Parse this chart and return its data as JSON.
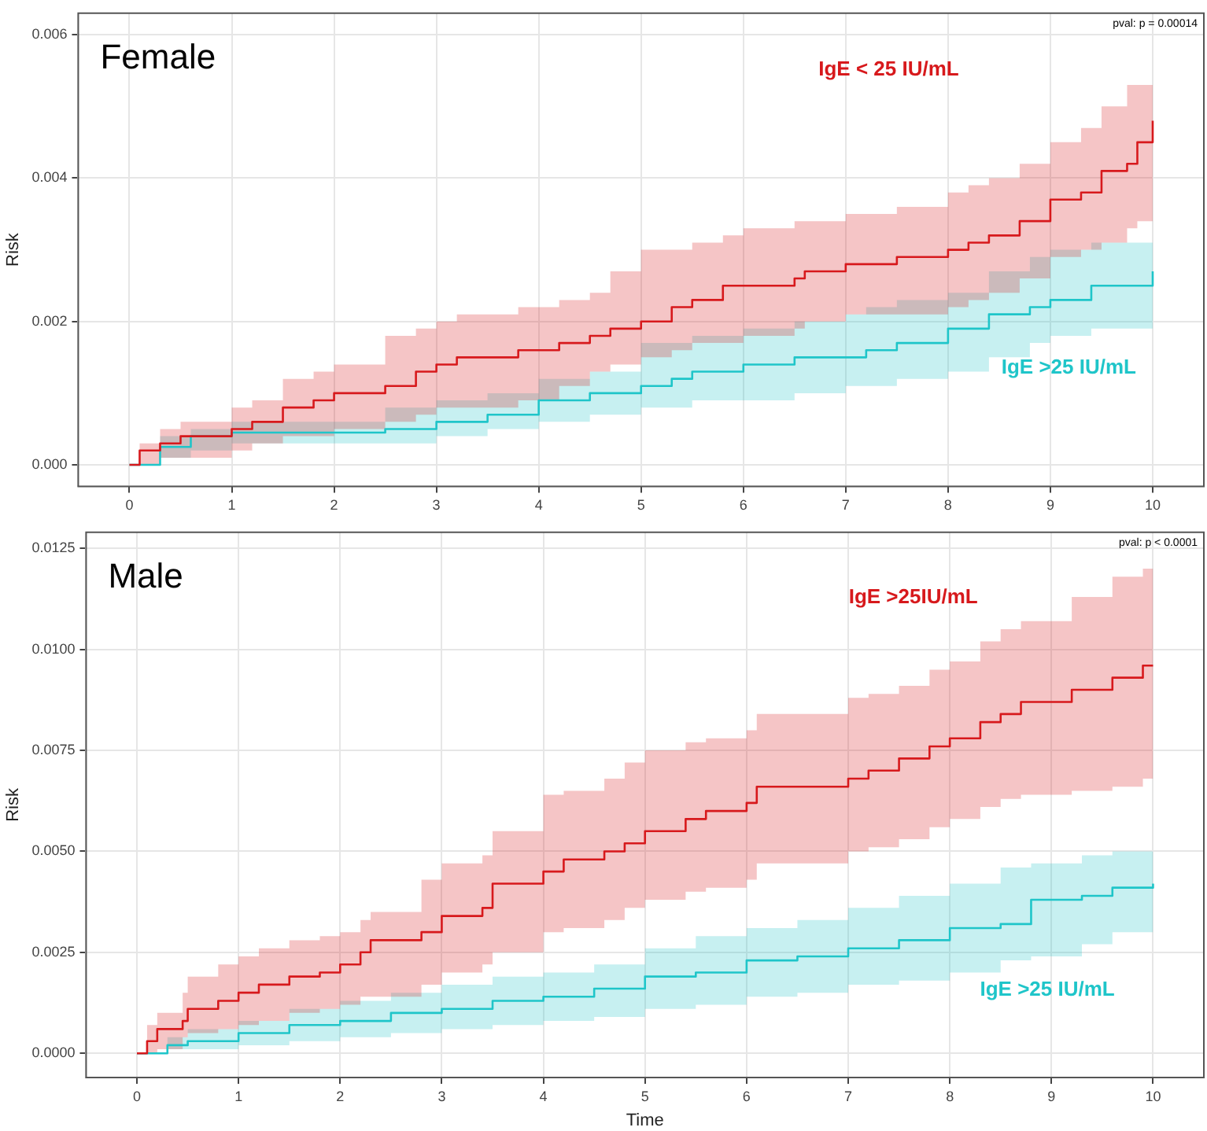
{
  "chart_data": [
    {
      "type": "step",
      "title": "Female",
      "ylabel": "Risk",
      "annotations": [
        "pval: p = 0.00014"
      ],
      "xlim": [
        -0.5,
        10.5
      ],
      "xticks": [
        0,
        1,
        2,
        3,
        4,
        5,
        6,
        7,
        8,
        9,
        10
      ],
      "ylim": [
        -0.0003,
        0.0063
      ],
      "yticks": [
        {
          "value": 0,
          "label": "0.000"
        },
        {
          "value": 0.002,
          "label": "0.002"
        },
        {
          "value": 0.004,
          "label": "0.004"
        },
        {
          "value": 0.006,
          "label": "0.006"
        }
      ],
      "grid": true,
      "legend": false,
      "marker": "none",
      "line_style": "solid",
      "series": [
        {
          "name": "IgE < 25 IU/mL",
          "color": "#d7191c",
          "x": [
            0,
            0.1,
            0.3,
            0.5,
            1,
            1.2,
            1.5,
            1.8,
            2,
            2.5,
            2.8,
            3,
            3.2,
            3.8,
            4.2,
            4.5,
            4.7,
            5,
            5.3,
            5.5,
            5.8,
            6,
            6.5,
            6.6,
            7,
            7.5,
            8,
            8.2,
            8.4,
            8.7,
            9,
            9.3,
            9.5,
            9.75,
            9.85,
            10
          ],
          "values": [
            0,
            0.0002,
            0.0003,
            0.0004,
            0.0005,
            0.0006,
            0.0008,
            0.0009,
            0.001,
            0.0011,
            0.0013,
            0.0014,
            0.0015,
            0.0016,
            0.0017,
            0.0018,
            0.0019,
            0.002,
            0.0022,
            0.0023,
            0.0025,
            0.0025,
            0.0026,
            0.0027,
            0.0028,
            0.0029,
            0.003,
            0.0031,
            0.0032,
            0.0034,
            0.0037,
            0.0038,
            0.0041,
            0.0042,
            0.0045,
            0.0048
          ],
          "upper": [
            0,
            0.0003,
            0.0005,
            0.0006,
            0.0008,
            0.0009,
            0.0012,
            0.0013,
            0.0014,
            0.0018,
            0.0019,
            0.002,
            0.0021,
            0.0022,
            0.0023,
            0.0024,
            0.0027,
            0.003,
            0.003,
            0.0031,
            0.0032,
            0.0033,
            0.0034,
            0.0034,
            0.0035,
            0.0036,
            0.0038,
            0.0039,
            0.004,
            0.0042,
            0.0045,
            0.0047,
            0.005,
            0.0053,
            0.0053,
            0.0058
          ],
          "lower": [
            0,
            0,
            0.0001,
            0.0001,
            0.0002,
            0.0003,
            0.0004,
            0.0004,
            0.0005,
            0.0006,
            0.0007,
            0.0008,
            0.0008,
            0.0009,
            0.0011,
            0.0013,
            0.0014,
            0.0015,
            0.0016,
            0.0017,
            0.0017,
            0.0018,
            0.0019,
            0.002,
            0.0021,
            0.0021,
            0.0022,
            0.0023,
            0.0024,
            0.0026,
            0.0029,
            0.003,
            0.0031,
            0.0033,
            0.0034,
            0.0036
          ]
        },
        {
          "name": "IgE >25 IU/mL",
          "color": "#1fc5c9",
          "x": [
            0,
            0.3,
            0.6,
            1,
            2,
            2.5,
            3,
            3.5,
            4,
            4.5,
            5,
            5.3,
            5.5,
            6,
            6.5,
            7,
            7.2,
            7.5,
            8,
            8.4,
            8.8,
            9,
            9.4,
            10
          ],
          "values": [
            0,
            0.00025,
            0.0004,
            0.00045,
            0.00045,
            0.0005,
            0.0006,
            0.0007,
            0.0009,
            0.001,
            0.0011,
            0.0012,
            0.0013,
            0.0014,
            0.0015,
            0.0015,
            0.0016,
            0.0017,
            0.0019,
            0.0021,
            0.0022,
            0.0023,
            0.0025,
            0.0027
          ],
          "upper": [
            0,
            0.0004,
            0.0005,
            0.0006,
            0.0006,
            0.0008,
            0.0009,
            0.001,
            0.0012,
            0.0013,
            0.0017,
            0.0017,
            0.0018,
            0.0019,
            0.002,
            0.0021,
            0.0022,
            0.0023,
            0.0024,
            0.0027,
            0.0029,
            0.003,
            0.0031,
            0.0033
          ],
          "lower": [
            0,
            0.0001,
            0.0002,
            0.0003,
            0.0003,
            0.0003,
            0.0004,
            0.0005,
            0.0006,
            0.0007,
            0.0008,
            0.0008,
            0.0009,
            0.0009,
            0.001,
            0.0011,
            0.0011,
            0.0012,
            0.0013,
            0.0015,
            0.0017,
            0.0018,
            0.0019,
            0.0021
          ]
        }
      ]
    },
    {
      "type": "step",
      "title": "Male",
      "xlabel": "Time",
      "ylabel": "Risk",
      "annotations": [
        "pval: p < 0.0001"
      ],
      "xlim": [
        -0.5,
        10.5
      ],
      "xticks": [
        0,
        1,
        2,
        3,
        4,
        5,
        6,
        7,
        8,
        9,
        10
      ],
      "ylim": [
        -0.0006,
        0.0129
      ],
      "yticks": [
        {
          "value": 0,
          "label": "0.0000"
        },
        {
          "value": 0.0025,
          "label": "0.0025"
        },
        {
          "value": 0.005,
          "label": "0.0050"
        },
        {
          "value": 0.0075,
          "label": "0.0075"
        },
        {
          "value": 0.01,
          "label": "0.0100"
        },
        {
          "value": 0.0125,
          "label": "0.0125"
        }
      ],
      "grid": true,
      "legend": false,
      "marker": "none",
      "line_style": "solid",
      "series": [
        {
          "name": "IgE >25IU/mL",
          "color": "#d7191c",
          "x": [
            0,
            0.1,
            0.2,
            0.45,
            0.5,
            0.8,
            1,
            1.2,
            1.5,
            1.8,
            2,
            2.2,
            2.3,
            2.8,
            3,
            3.4,
            3.5,
            4,
            4.2,
            4.6,
            4.8,
            5,
            5.4,
            5.6,
            6,
            6.1,
            7,
            7.2,
            7.5,
            7.8,
            8,
            8.3,
            8.5,
            8.7,
            9.2,
            9.6,
            9.9,
            10
          ],
          "values": [
            0,
            0.0003,
            0.0006,
            0.0008,
            0.0011,
            0.0013,
            0.0015,
            0.0017,
            0.0019,
            0.002,
            0.0022,
            0.0025,
            0.0028,
            0.003,
            0.0034,
            0.0036,
            0.0042,
            0.0045,
            0.0048,
            0.005,
            0.0052,
            0.0055,
            0.0058,
            0.006,
            0.0062,
            0.0066,
            0.0068,
            0.007,
            0.0073,
            0.0076,
            0.0078,
            0.0082,
            0.0084,
            0.0087,
            0.009,
            0.0093,
            0.0096,
            0.0096
          ],
          "upper": [
            0,
            0.0007,
            0.001,
            0.0015,
            0.0019,
            0.0022,
            0.0024,
            0.0026,
            0.0028,
            0.0029,
            0.003,
            0.0033,
            0.0035,
            0.0043,
            0.0047,
            0.0049,
            0.0055,
            0.0064,
            0.0065,
            0.0068,
            0.0072,
            0.0075,
            0.0077,
            0.0078,
            0.008,
            0.0084,
            0.0088,
            0.0089,
            0.0091,
            0.0095,
            0.0097,
            0.0102,
            0.0105,
            0.0107,
            0.0113,
            0.0118,
            0.012,
            0.0122
          ],
          "lower": [
            0,
            0,
            0.0001,
            0.0004,
            0.0005,
            0.0006,
            0.0007,
            0.0008,
            0.001,
            0.0011,
            0.0012,
            0.0014,
            0.0014,
            0.0017,
            0.002,
            0.0022,
            0.0025,
            0.003,
            0.0031,
            0.0033,
            0.0036,
            0.0038,
            0.004,
            0.0041,
            0.0043,
            0.0047,
            0.005,
            0.0051,
            0.0053,
            0.0056,
            0.0058,
            0.0061,
            0.0063,
            0.0064,
            0.0065,
            0.0066,
            0.0068,
            0.007
          ]
        },
        {
          "name": "IgE >25 IU/mL",
          "color": "#1fc5c9",
          "x": [
            0,
            0.3,
            0.5,
            1,
            1.5,
            2,
            2.5,
            3,
            3.5,
            4,
            4.5,
            5,
            5.5,
            6,
            6.5,
            7,
            7.5,
            8,
            8.5,
            8.8,
            9.3,
            9.6,
            10
          ],
          "values": [
            0,
            0.0002,
            0.0003,
            0.0005,
            0.0007,
            0.0008,
            0.001,
            0.0011,
            0.0013,
            0.0014,
            0.0016,
            0.0019,
            0.002,
            0.0023,
            0.0024,
            0.0026,
            0.0028,
            0.0031,
            0.0032,
            0.0038,
            0.0039,
            0.0041,
            0.0042
          ],
          "upper": [
            0,
            0.0004,
            0.0006,
            0.0008,
            0.0011,
            0.0013,
            0.0015,
            0.0017,
            0.0019,
            0.002,
            0.0022,
            0.0026,
            0.0029,
            0.0031,
            0.0033,
            0.0036,
            0.0039,
            0.0042,
            0.0046,
            0.0047,
            0.0049,
            0.005,
            0.0051
          ],
          "lower": [
            0,
            0.0001,
            0.0001,
            0.0002,
            0.0003,
            0.0004,
            0.0005,
            0.0006,
            0.0007,
            0.0008,
            0.0009,
            0.0011,
            0.0012,
            0.0014,
            0.0015,
            0.0017,
            0.0018,
            0.002,
            0.0023,
            0.0024,
            0.0027,
            0.003,
            0.0033
          ]
        }
      ]
    }
  ]
}
